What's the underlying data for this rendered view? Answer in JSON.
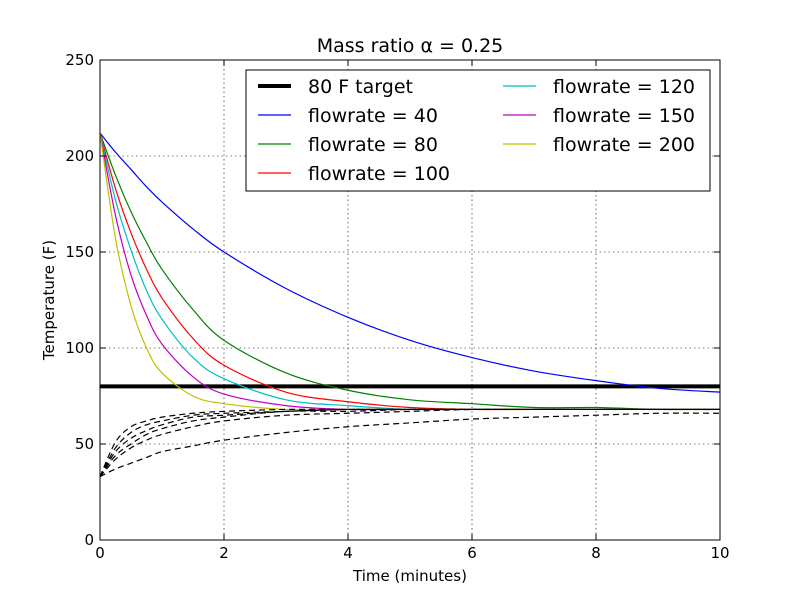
{
  "chart_data": {
    "type": "line",
    "title": "Mass ratio α = 0.25",
    "xlabel": "Time (minutes)",
    "ylabel": "Temperature (F)",
    "xlim": [
      0,
      10
    ],
    "ylim": [
      0,
      250
    ],
    "grid": true,
    "legend_position": "top",
    "x_ticks": [
      0,
      2,
      4,
      6,
      8,
      10
    ],
    "y_ticks": [
      0,
      50,
      100,
      150,
      200,
      250
    ],
    "x_tick_labels": [
      "0",
      "2",
      "4",
      "6",
      "8",
      "10"
    ],
    "y_tick_labels": [
      "0",
      "50",
      "100",
      "150",
      "200",
      "250"
    ],
    "x": [
      0,
      0.25,
      0.5,
      0.75,
      1,
      1.5,
      2,
      3,
      4,
      5,
      6,
      7,
      8,
      9,
      10
    ],
    "target": {
      "name": "80 F target",
      "value": 80,
      "color": "#000000"
    },
    "series": [
      {
        "name": "flowrate = 40",
        "color": "#0000ff",
        "y": [
          212,
          202,
          193,
          184,
          176,
          162,
          150,
          131,
          116,
          104,
          95,
          88,
          83,
          79,
          77
        ]
      },
      {
        "name": "flowrate = 80",
        "color": "#008000",
        "y": [
          212,
          190,
          171,
          155,
          141,
          120,
          104,
          87,
          78,
          73,
          71,
          69,
          69,
          68,
          68
        ]
      },
      {
        "name": "flowrate = 100",
        "color": "#ff0000",
        "y": [
          212,
          183,
          160,
          141,
          126,
          105,
          91,
          77,
          72,
          69,
          68,
          68,
          68,
          68,
          68
        ]
      },
      {
        "name": "flowrate = 120",
        "color": "#00bfbf",
        "y": [
          212,
          177,
          151,
          130,
          115,
          95,
          84,
          73,
          70,
          68,
          68,
          68,
          68,
          68,
          68
        ]
      },
      {
        "name": "flowrate = 150",
        "color": "#bf00bf",
        "y": [
          212,
          169,
          138,
          117,
          102,
          85,
          76,
          70,
          68,
          68,
          68,
          68,
          68,
          68,
          68
        ]
      },
      {
        "name": "flowrate = 200",
        "color": "#bfbf00",
        "y": [
          212,
          157,
          122,
          100,
          87,
          75,
          71,
          68,
          68,
          68,
          68,
          68,
          68,
          68,
          68
        ]
      }
    ],
    "dashed_series": [
      {
        "color": "#000000",
        "y": [
          33,
          37,
          40,
          43,
          46,
          49,
          52,
          56,
          59,
          61,
          63,
          64,
          65,
          66,
          66
        ]
      },
      {
        "color": "#000000",
        "y": [
          33,
          42,
          48,
          52,
          55,
          59,
          62,
          65,
          66,
          67,
          68,
          68,
          68,
          68,
          68
        ]
      },
      {
        "color": "#000000",
        "y": [
          33,
          44,
          50,
          55,
          58,
          62,
          64,
          67,
          67,
          68,
          68,
          68,
          68,
          68,
          68
        ]
      },
      {
        "color": "#000000",
        "y": [
          33,
          46,
          53,
          57,
          60,
          64,
          65,
          67,
          68,
          68,
          68,
          68,
          68,
          68,
          68
        ]
      },
      {
        "color": "#000000",
        "y": [
          33,
          48,
          56,
          60,
          62,
          65,
          66,
          67,
          68,
          68,
          68,
          68,
          68,
          68,
          68
        ]
      },
      {
        "color": "#000000",
        "y": [
          33,
          51,
          59,
          62,
          64,
          66,
          67,
          68,
          68,
          68,
          68,
          68,
          68,
          68,
          68
        ]
      }
    ]
  }
}
